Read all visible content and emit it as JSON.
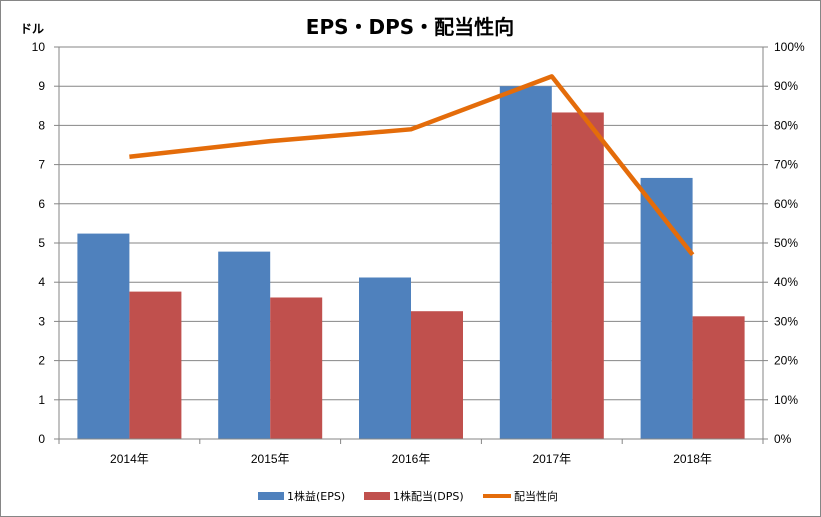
{
  "chart_data": {
    "type": "bar",
    "title": "EPS・DPS・配当性向",
    "y_unit_label": "ドル",
    "categories": [
      "2014年",
      "2015年",
      "2016年",
      "2017年",
      "2018年"
    ],
    "series": [
      {
        "name": "1株益(EPS)",
        "type": "bar",
        "axis": "left",
        "color": "#4F81BD",
        "values": [
          5.24,
          4.78,
          4.12,
          9.0,
          6.66
        ]
      },
      {
        "name": "1株配当(DPS)",
        "type": "bar",
        "axis": "left",
        "color": "#C0504D",
        "values": [
          3.76,
          3.61,
          3.26,
          8.33,
          3.13
        ]
      },
      {
        "name": "配当性向",
        "type": "line",
        "axis": "right",
        "color": "#E46C0A",
        "values": [
          72,
          76,
          79,
          92.5,
          47
        ]
      }
    ],
    "y_left": {
      "min": 0,
      "max": 10,
      "ticks": [
        "0",
        "1",
        "2",
        "3",
        "4",
        "5",
        "6",
        "7",
        "8",
        "9",
        "10"
      ]
    },
    "y_right": {
      "min": 0,
      "max": 100,
      "ticks": [
        "0%",
        "10%",
        "20%",
        "30%",
        "40%",
        "50%",
        "60%",
        "70%",
        "80%",
        "90%",
        "100%"
      ]
    },
    "grid": true,
    "legend_position": "bottom"
  }
}
